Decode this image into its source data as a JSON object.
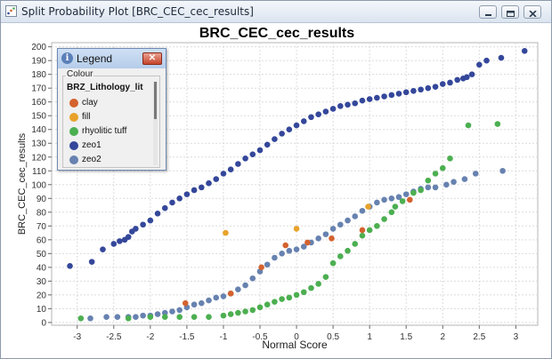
{
  "window": {
    "title": "Split Probability Plot [BRC_CEC_cec_results]"
  },
  "legend": {
    "title": "Legend",
    "group_label": "Colour",
    "header": "BRZ_Lithology_lit",
    "items": [
      {
        "label": "clay",
        "color": "#d4622e"
      },
      {
        "label": "fill",
        "color": "#e8a22a"
      },
      {
        "label": "rhyolitic tuff",
        "color": "#4caf50"
      },
      {
        "label": "zeo1",
        "color": "#34479a"
      },
      {
        "label": "zeo2",
        "color": "#6782b0"
      }
    ]
  },
  "chart_data": {
    "type": "scatter",
    "title": "BRC_CEC_cec_results",
    "xlabel": "Normal Score",
    "ylabel": "BRC_CEC_cec_results",
    "xlim": [
      -3.35,
      3.3
    ],
    "ylim": [
      -2,
      203
    ],
    "x_ticks": [
      -3,
      -2.5,
      -2,
      -1.5,
      -1,
      -0.5,
      0,
      0.5,
      1,
      1.5,
      2,
      2.5,
      3
    ],
    "y_ticks": [
      0,
      10,
      20,
      30,
      40,
      50,
      60,
      70,
      80,
      90,
      100,
      110,
      120,
      130,
      140,
      150,
      160,
      170,
      180,
      190,
      200
    ],
    "grid": true,
    "series": [
      {
        "name": "zeo1",
        "color": "#34479a",
        "points": [
          [
            -3.1,
            41
          ],
          [
            -2.8,
            44
          ],
          [
            -2.65,
            53
          ],
          [
            -2.5,
            57
          ],
          [
            -2.42,
            59
          ],
          [
            -2.35,
            60
          ],
          [
            -2.3,
            62
          ],
          [
            -2.25,
            66
          ],
          [
            -2.2,
            68
          ],
          [
            -2.1,
            71
          ],
          [
            -2.0,
            74
          ],
          [
            -1.9,
            79
          ],
          [
            -1.8,
            83
          ],
          [
            -1.7,
            87
          ],
          [
            -1.6,
            90
          ],
          [
            -1.5,
            93
          ],
          [
            -1.4,
            96
          ],
          [
            -1.3,
            98
          ],
          [
            -1.2,
            101
          ],
          [
            -1.1,
            104
          ],
          [
            -1.0,
            108
          ],
          [
            -0.9,
            111
          ],
          [
            -0.8,
            115
          ],
          [
            -0.7,
            119
          ],
          [
            -0.6,
            122
          ],
          [
            -0.5,
            125
          ],
          [
            -0.4,
            129
          ],
          [
            -0.3,
            133
          ],
          [
            -0.2,
            137
          ],
          [
            -0.1,
            140
          ],
          [
            0.0,
            143
          ],
          [
            0.1,
            146
          ],
          [
            0.2,
            149
          ],
          [
            0.3,
            151
          ],
          [
            0.4,
            153
          ],
          [
            0.5,
            155
          ],
          [
            0.6,
            157
          ],
          [
            0.7,
            158
          ],
          [
            0.8,
            159
          ],
          [
            0.9,
            161
          ],
          [
            1.0,
            162
          ],
          [
            1.1,
            163
          ],
          [
            1.2,
            164
          ],
          [
            1.3,
            165
          ],
          [
            1.4,
            166
          ],
          [
            1.5,
            167
          ],
          [
            1.6,
            168
          ],
          [
            1.7,
            169
          ],
          [
            1.8,
            170
          ],
          [
            1.9,
            171
          ],
          [
            2.0,
            173
          ],
          [
            2.1,
            174
          ],
          [
            2.2,
            176
          ],
          [
            2.28,
            177
          ],
          [
            2.33,
            178
          ],
          [
            2.4,
            180
          ],
          [
            2.5,
            187
          ],
          [
            2.6,
            190
          ],
          [
            2.8,
            192
          ],
          [
            3.12,
            197
          ]
        ]
      },
      {
        "name": "zeo2",
        "color": "#6782b0",
        "points": [
          [
            -2.82,
            3
          ],
          [
            -2.6,
            4
          ],
          [
            -2.45,
            4
          ],
          [
            -2.3,
            4
          ],
          [
            -2.2,
            4
          ],
          [
            -2.1,
            5
          ],
          [
            -2.0,
            5
          ],
          [
            -1.9,
            6
          ],
          [
            -1.8,
            7
          ],
          [
            -1.7,
            8
          ],
          [
            -1.6,
            9
          ],
          [
            -1.5,
            11
          ],
          [
            -1.4,
            13
          ],
          [
            -1.3,
            14
          ],
          [
            -1.2,
            16
          ],
          [
            -1.1,
            18
          ],
          [
            -1.0,
            19
          ],
          [
            -0.9,
            21
          ],
          [
            -0.8,
            24
          ],
          [
            -0.7,
            27
          ],
          [
            -0.6,
            32
          ],
          [
            -0.5,
            37
          ],
          [
            -0.4,
            42
          ],
          [
            -0.3,
            47
          ],
          [
            -0.2,
            50
          ],
          [
            -0.1,
            52
          ],
          [
            0.0,
            53
          ],
          [
            0.1,
            55
          ],
          [
            0.2,
            58
          ],
          [
            0.3,
            61
          ],
          [
            0.4,
            64
          ],
          [
            0.5,
            68
          ],
          [
            0.6,
            71
          ],
          [
            0.7,
            74
          ],
          [
            0.8,
            77
          ],
          [
            0.9,
            81
          ],
          [
            1.0,
            84
          ],
          [
            1.1,
            87
          ],
          [
            1.2,
            89
          ],
          [
            1.3,
            90
          ],
          [
            1.4,
            91
          ],
          [
            1.5,
            93
          ],
          [
            1.6,
            95
          ],
          [
            1.7,
            97
          ],
          [
            1.8,
            98
          ],
          [
            1.9,
            98
          ],
          [
            2.05,
            100
          ],
          [
            2.15,
            102
          ],
          [
            2.3,
            104
          ],
          [
            2.45,
            108
          ],
          [
            2.82,
            110
          ]
        ]
      },
      {
        "name": "rhyolitic tuff",
        "color": "#4caf50",
        "points": [
          [
            -2.95,
            3
          ],
          [
            -2.3,
            3
          ],
          [
            -2.0,
            4
          ],
          [
            -1.8,
            4
          ],
          [
            -1.6,
            4
          ],
          [
            -1.4,
            4
          ],
          [
            -1.2,
            4
          ],
          [
            -1.0,
            5
          ],
          [
            -0.9,
            6
          ],
          [
            -0.8,
            7
          ],
          [
            -0.7,
            8
          ],
          [
            -0.6,
            9
          ],
          [
            -0.5,
            11
          ],
          [
            -0.4,
            13
          ],
          [
            -0.3,
            15
          ],
          [
            -0.2,
            17
          ],
          [
            -0.1,
            18
          ],
          [
            0.0,
            20
          ],
          [
            0.1,
            22
          ],
          [
            0.2,
            25
          ],
          [
            0.3,
            28
          ],
          [
            0.4,
            33
          ],
          [
            0.5,
            43
          ],
          [
            0.6,
            48
          ],
          [
            0.7,
            52
          ],
          [
            0.8,
            57
          ],
          [
            0.9,
            63
          ],
          [
            1.0,
            67
          ],
          [
            1.1,
            70
          ],
          [
            1.2,
            75
          ],
          [
            1.3,
            80
          ],
          [
            1.35,
            84
          ],
          [
            1.45,
            88
          ],
          [
            1.6,
            94
          ],
          [
            1.7,
            96
          ],
          [
            1.8,
            103
          ],
          [
            1.9,
            108
          ],
          [
            2.0,
            112
          ],
          [
            2.1,
            119
          ],
          [
            2.35,
            143
          ],
          [
            2.75,
            144
          ]
        ]
      },
      {
        "name": "clay",
        "color": "#d4622e",
        "points": [
          [
            -1.52,
            14
          ],
          [
            -0.9,
            21
          ],
          [
            -0.48,
            40
          ],
          [
            -0.15,
            56
          ],
          [
            0.15,
            58
          ],
          [
            0.48,
            61
          ],
          [
            0.9,
            67
          ],
          [
            1.55,
            89
          ]
        ]
      },
      {
        "name": "fill",
        "color": "#e8a22a",
        "points": [
          [
            -0.97,
            65
          ],
          [
            0.0,
            68
          ],
          [
            0.98,
            84
          ]
        ]
      }
    ]
  }
}
